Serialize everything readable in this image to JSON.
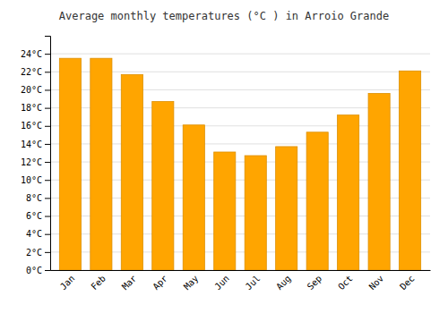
{
  "chart_data": {
    "type": "bar",
    "title": "Average monthly temperatures (°C ) in Arroio Grande",
    "categories": [
      "Jan",
      "Feb",
      "Mar",
      "Apr",
      "May",
      "Jun",
      "Jul",
      "Aug",
      "Sep",
      "Oct",
      "Nov",
      "Dec"
    ],
    "values": [
      23.5,
      23.5,
      21.7,
      18.7,
      16.1,
      13.1,
      12.7,
      13.7,
      15.3,
      17.2,
      19.6,
      22.1
    ],
    "color": "#FFA500",
    "ylim": [
      0,
      26
    ],
    "yticks": [
      {
        "value": 0,
        "label": "0°C"
      },
      {
        "value": 2,
        "label": "2°C"
      },
      {
        "value": 4,
        "label": "4°C"
      },
      {
        "value": 6,
        "label": "6°C"
      },
      {
        "value": 8,
        "label": "8°C"
      },
      {
        "value": 10,
        "label": "10°C"
      },
      {
        "value": 12,
        "label": "12°C"
      },
      {
        "value": 14,
        "label": "14°C"
      },
      {
        "value": 16,
        "label": "16°C"
      },
      {
        "value": 18,
        "label": "18°C"
      },
      {
        "value": 20,
        "label": "20°C"
      },
      {
        "value": 22,
        "label": "22°C"
      },
      {
        "value": 24,
        "label": "24°C"
      }
    ],
    "grid": true
  }
}
